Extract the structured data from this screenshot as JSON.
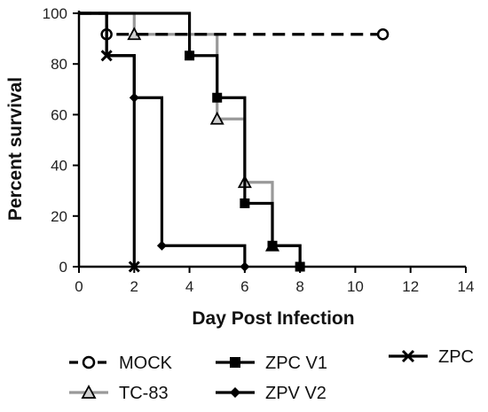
{
  "chart_data": {
    "type": "line",
    "step": true,
    "title": "",
    "xlabel": "Day Post Infection",
    "ylabel": "Percent survival",
    "xlim": [
      0,
      14
    ],
    "ylim": [
      0,
      100
    ],
    "xticks": [
      0,
      2,
      4,
      6,
      8,
      10,
      12,
      14
    ],
    "yticks": [
      0,
      20,
      40,
      60,
      80,
      100
    ],
    "grid": false,
    "legend_position": "bottom",
    "series": [
      {
        "name": "MOCK",
        "color": "#000000",
        "line_style": "dashed",
        "marker": "circle-open",
        "x": [
          0,
          1,
          11
        ],
        "y": [
          100,
          91.7,
          91.7
        ],
        "marked_points": [
          [
            1,
            91.7
          ],
          [
            11,
            91.7
          ]
        ]
      },
      {
        "name": "TC-83",
        "color": "#999999",
        "line_style": "solid",
        "marker": "triangle",
        "x": [
          0,
          2,
          5,
          6,
          7,
          8
        ],
        "y": [
          100,
          91.7,
          58.3,
          33.3,
          8.3,
          0
        ],
        "marked_points": [
          [
            2,
            91.7
          ],
          [
            5,
            58.3
          ],
          [
            6,
            33.3
          ],
          [
            7,
            8.3
          ]
        ]
      },
      {
        "name": "ZPC V1",
        "color": "#000000",
        "line_style": "solid",
        "marker": "square",
        "x": [
          0,
          4,
          5,
          6,
          7,
          8
        ],
        "y": [
          100,
          83.3,
          66.7,
          25,
          8.3,
          0
        ],
        "marked_points": [
          [
            4,
            83.3
          ],
          [
            5,
            66.7
          ],
          [
            6,
            25
          ],
          [
            7,
            8.3
          ],
          [
            8,
            0
          ]
        ]
      },
      {
        "name": "ZPV V2",
        "color": "#000000",
        "line_style": "solid",
        "marker": "diamond",
        "x": [
          0,
          1,
          2,
          3,
          6
        ],
        "y": [
          100,
          83.3,
          66.7,
          8.3,
          0
        ],
        "marked_points": [
          [
            2,
            66.7
          ],
          [
            3,
            8.3
          ],
          [
            6,
            0
          ]
        ]
      },
      {
        "name": "ZPC",
        "color": "#000000",
        "line_style": "solid",
        "marker": "x",
        "x": [
          0,
          1,
          2
        ],
        "y": [
          100,
          83.3,
          0
        ],
        "marked_points": [
          [
            1,
            83.3
          ],
          [
            2,
            0
          ]
        ]
      }
    ]
  }
}
